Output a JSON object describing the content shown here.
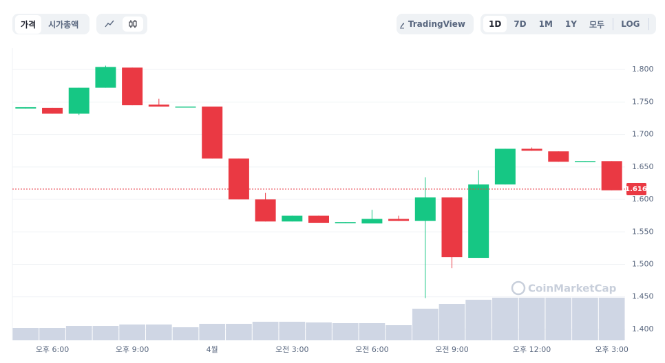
{
  "toolbar": {
    "price": "가격",
    "market_cap": "시가총액",
    "tradingview": "TradingView",
    "ranges": [
      "1D",
      "7D",
      "1M",
      "1Y",
      "모두"
    ],
    "log": "LOG"
  },
  "chart_data": {
    "type": "candlestick",
    "watermark": "CoinMarketCap",
    "categories": [
      null,
      "오후 6:00",
      null,
      null,
      "오후 9:00",
      null,
      null,
      "4월",
      null,
      null,
      "오전 3:00",
      null,
      null,
      "오전 6:00",
      null,
      null,
      "오전 9:00",
      null,
      null,
      "오후 12:00",
      null,
      null,
      "오후 3:00"
    ],
    "open": [
      1.74,
      1.741,
      1.732,
      1.772,
      1.803,
      1.746,
      1.742,
      1.743,
      1.663,
      1.6,
      1.566,
      1.575,
      1.564,
      1.563,
      1.57,
      1.567,
      1.603,
      1.51,
      1.623,
      1.678,
      1.674,
      1.658,
      1.659
    ],
    "high": [
      1.742,
      1.741,
      1.772,
      1.806,
      1.803,
      1.755,
      1.743,
      1.743,
      1.663,
      1.61,
      1.575,
      1.575,
      1.565,
      1.584,
      1.575,
      1.634,
      1.603,
      1.645,
      1.678,
      1.68,
      1.674,
      1.659,
      1.659
    ],
    "low": [
      1.74,
      1.732,
      1.73,
      1.772,
      1.745,
      1.743,
      1.742,
      1.663,
      1.6,
      1.566,
      1.566,
      1.564,
      1.564,
      1.563,
      1.567,
      1.448,
      1.494,
      1.51,
      1.623,
      1.675,
      1.658,
      1.658,
      1.614
    ],
    "close": [
      1.742,
      1.732,
      1.772,
      1.804,
      1.745,
      1.743,
      1.743,
      1.663,
      1.6,
      1.566,
      1.575,
      1.564,
      1.565,
      1.57,
      1.567,
      1.603,
      1.511,
      1.623,
      1.678,
      1.675,
      1.658,
      1.659,
      1.614
    ],
    "volume": [
      18,
      18,
      21,
      21,
      23,
      23,
      19,
      24,
      24,
      27,
      27,
      26,
      25,
      25,
      22,
      46,
      53,
      59,
      62,
      62,
      62,
      62,
      62
    ],
    "up_color": "#16c784",
    "down_color": "#ea3943",
    "volume_color": "#cfd6e4",
    "last_price": 1.616,
    "ylim": [
      1.383,
      1.833
    ],
    "yticks": [
      {
        "value": 1.4,
        "label": "1.400"
      },
      {
        "value": 1.45,
        "label": "1.450"
      },
      {
        "value": 1.5,
        "label": "1.500"
      },
      {
        "value": 1.55,
        "label": "1.550"
      },
      {
        "value": 1.6,
        "label": "1.600"
      },
      {
        "value": 1.65,
        "label": "1.650"
      },
      {
        "value": 1.7,
        "label": "1.700"
      },
      {
        "value": 1.75,
        "label": "1.750"
      },
      {
        "value": 1.8,
        "label": "1.800"
      }
    ],
    "grid": true
  }
}
